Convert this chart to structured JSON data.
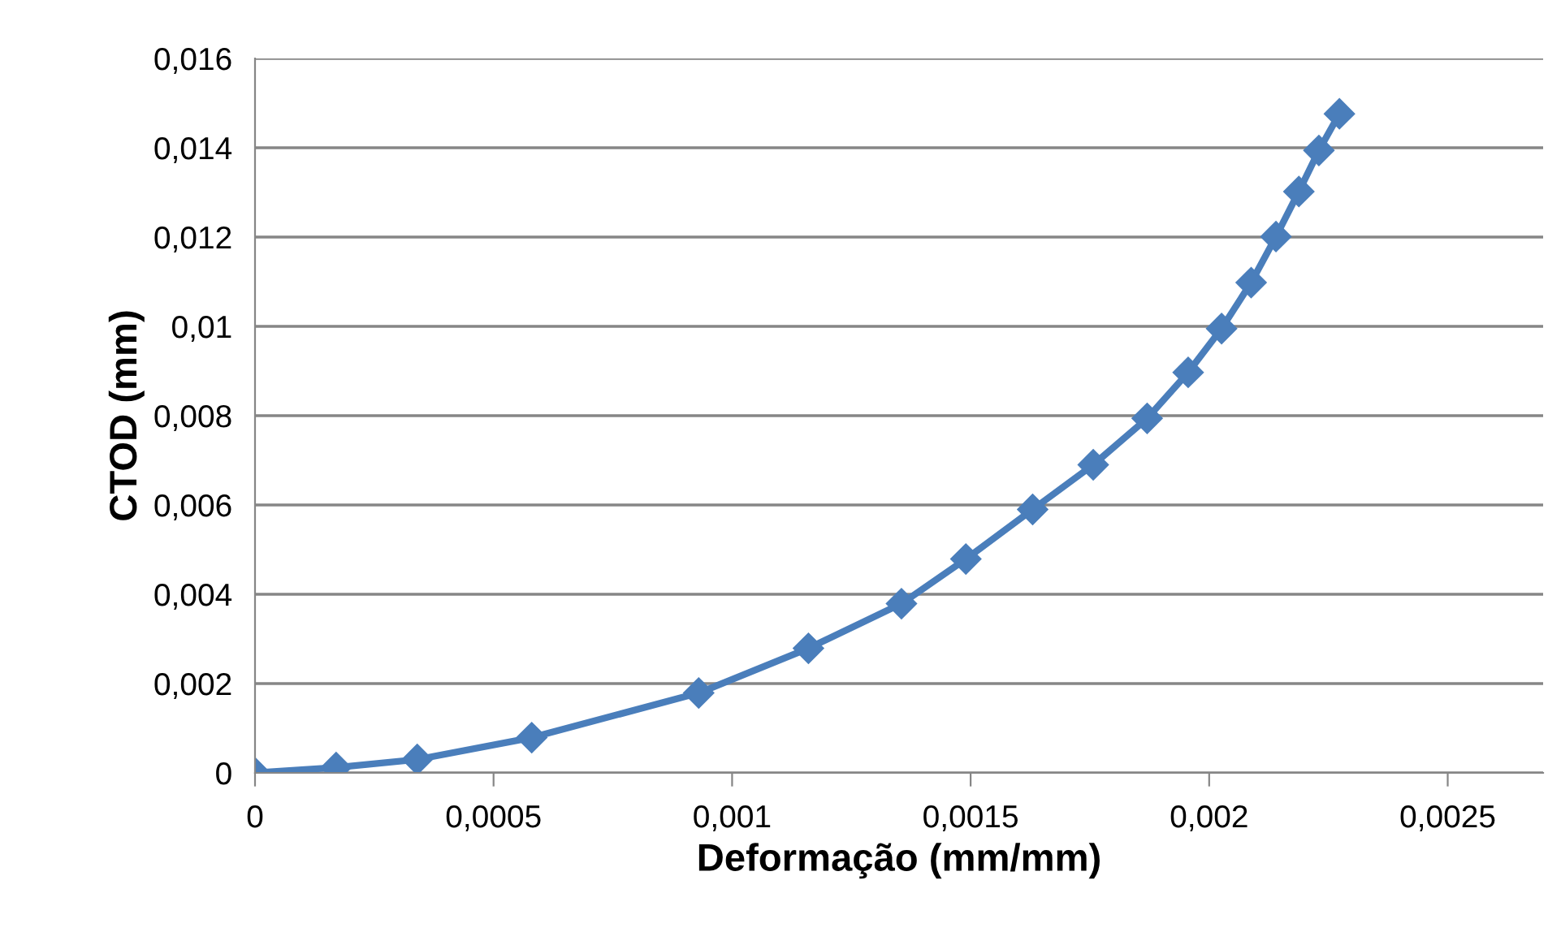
{
  "chart_data": {
    "type": "line",
    "xlabel": "Deformação (mm/mm)",
    "ylabel": "CTOD (mm)",
    "x": [
      0,
      0.00017,
      0.00034,
      0.00058,
      0.00093,
      0.00116,
      0.001355,
      0.00149,
      0.00163,
      0.001757,
      0.00187,
      0.001956,
      0.002026,
      0.002088,
      0.00214,
      0.002188,
      0.00223,
      0.002273
    ],
    "series": [
      {
        "color": "#4a7ebb",
        "values": [
          0,
          0.00012,
          0.0003,
          0.00079,
          0.00179,
          0.00279,
          0.00379,
          0.00479,
          0.0059,
          0.0069,
          0.00794,
          0.00897,
          0.00995,
          0.01098,
          0.01201,
          0.01302,
          0.01394,
          0.01476
        ]
      }
    ],
    "xlim": [
      0,
      0.0027
    ],
    "xticks": [
      {
        "value": 0,
        "label": "0"
      },
      {
        "value": 0.0005,
        "label": "0,0005"
      },
      {
        "value": 0.001,
        "label": "0,001"
      },
      {
        "value": 0.0015,
        "label": "0,0015"
      },
      {
        "value": 0.002,
        "label": "0,002"
      },
      {
        "value": 0.0025,
        "label": "0,0025"
      }
    ],
    "ylim": [
      0,
      0.016
    ],
    "yticks": [
      {
        "value": 0,
        "label": "0"
      },
      {
        "value": 0.002,
        "label": "0,002"
      },
      {
        "value": 0.004,
        "label": "0,004"
      },
      {
        "value": 0.006,
        "label": "0,006"
      },
      {
        "value": 0.008,
        "label": "0,008"
      },
      {
        "value": 0.01,
        "label": "0,01"
      },
      {
        "value": 0.012,
        "label": "0,012"
      },
      {
        "value": 0.014,
        "label": "0,014"
      },
      {
        "value": 0.016,
        "label": "0,016"
      }
    ],
    "grid": "y",
    "marker": "diamond",
    "line_style": "solid"
  }
}
